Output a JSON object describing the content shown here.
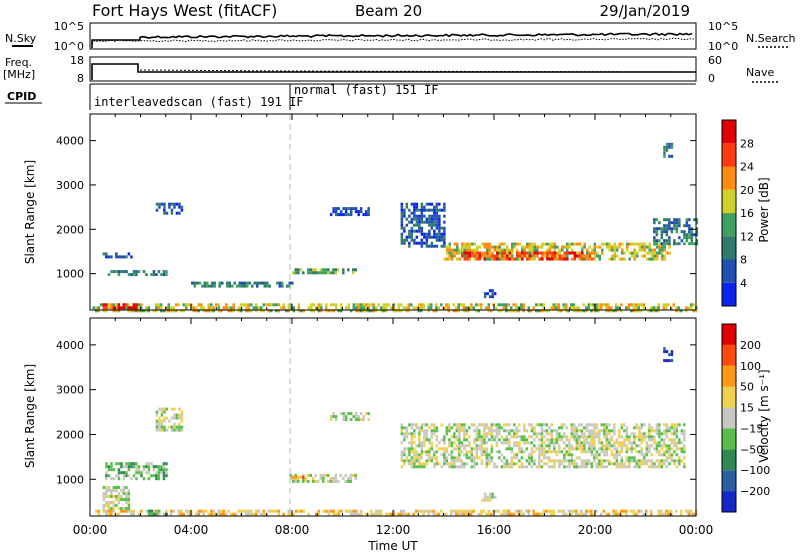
{
  "header": {
    "station": "Fort Hays West (fitACF)",
    "beam": "Beam 20",
    "date": "29/Jan/2019"
  },
  "strips": {
    "nsky": {
      "left_label": "N.Sky",
      "right_label": "N.Search",
      "left_ticks": [
        "10^5",
        "10^0"
      ],
      "right_ticks": [
        "10^5",
        "10^0"
      ]
    },
    "freq": {
      "left_label": "Freq.",
      "left_unit": "[MHz]",
      "right_label": "Nave",
      "left_ticks": [
        "18",
        "8"
      ],
      "right_ticks": [
        "60",
        "0"
      ]
    },
    "cpid": {
      "label": "CPID",
      "segments": [
        {
          "text": "interleavedscan (fast) 191 IF",
          "start_hour": 0,
          "end_hour": 8
        },
        {
          "text": "normal (fast) 151 IF",
          "start_hour": 8,
          "end_hour": 24
        }
      ]
    }
  },
  "time_axis": {
    "label": "Time UT",
    "ticks": [
      "00:00",
      "04:00",
      "08:00",
      "12:00",
      "16:00",
      "20:00",
      "00:00"
    ]
  },
  "chart_data": [
    {
      "type": "heatmap",
      "title": "",
      "xlabel": "Time UT",
      "ylabel": "Slant Range [km]",
      "xlim_hours": [
        0,
        24
      ],
      "ylim_km": [
        180,
        4600
      ],
      "yticks": [
        1000,
        2000,
        3000,
        4000
      ],
      "colorbar": {
        "label": "Power [dB]",
        "ticks": [
          "4",
          "8",
          "12",
          "16",
          "20",
          "24",
          "28"
        ],
        "colors": [
          "#0a24f0",
          "#1f4fb0",
          "#2f7a6a",
          "#3fa060",
          "#cfd02a",
          "#ff8c10",
          "#ff3a10",
          "#e00000"
        ]
      },
      "echo_regions": [
        {
          "t0": 0.1,
          "t1": 24,
          "r0": 190,
          "r1": 330,
          "level": 4
        },
        {
          "t0": 0.5,
          "t1": 1.8,
          "r0": 230,
          "r1": 330,
          "level": 7
        },
        {
          "t0": 0.6,
          "t1": 3.0,
          "r0": 950,
          "r1": 1080,
          "level": 2
        },
        {
          "t0": 0.5,
          "t1": 1.6,
          "r0": 1350,
          "r1": 1480,
          "level": 1
        },
        {
          "t0": 2.6,
          "t1": 3.6,
          "r0": 2350,
          "r1": 2600,
          "level": 1
        },
        {
          "t0": 4.0,
          "t1": 8.0,
          "r0": 700,
          "r1": 820,
          "level": 2
        },
        {
          "t0": 8.0,
          "t1": 10.5,
          "r0": 1000,
          "r1": 1120,
          "level": 3
        },
        {
          "t0": 9.5,
          "t1": 11.0,
          "r0": 2300,
          "r1": 2500,
          "level": 1
        },
        {
          "t0": 12.3,
          "t1": 14.0,
          "r0": 1600,
          "r1": 2600,
          "level": 1
        },
        {
          "t0": 14.0,
          "t1": 23.0,
          "r0": 1300,
          "r1": 1700,
          "level": 4
        },
        {
          "t0": 14.5,
          "t1": 20.0,
          "r0": 1350,
          "r1": 1500,
          "level": 6
        },
        {
          "t0": 22.3,
          "t1": 24.0,
          "r0": 1700,
          "r1": 2250,
          "level": 2
        },
        {
          "t0": 15.6,
          "t1": 16.0,
          "r0": 500,
          "r1": 650,
          "level": 1
        },
        {
          "t0": 22.7,
          "t1": 23.0,
          "r0": 3650,
          "r1": 3950,
          "level": 2
        }
      ]
    },
    {
      "type": "heatmap",
      "title": "",
      "xlabel": "Time UT",
      "ylabel": "Slant Range [km]",
      "xlim_hours": [
        0,
        24
      ],
      "ylim_km": [
        180,
        4600
      ],
      "yticks": [
        1000,
        2000,
        3000,
        4000
      ],
      "colorbar": {
        "label": "Velocity [m s⁻¹]",
        "ticks": [
          "200",
          "100",
          "50",
          "15",
          "−15",
          "−50",
          "−100",
          "−200"
        ],
        "colors": [
          "#1428c8",
          "#2860a0",
          "#2e8a52",
          "#58c04a",
          "#c8c8c0",
          "#f0d050",
          "#ff9a10",
          "#ff4a10",
          "#e00000"
        ]
      },
      "echo_regions": [
        {
          "t0": 0.1,
          "t1": 24,
          "r0": 190,
          "r1": 320,
          "level": 5
        },
        {
          "t0": 2.0,
          "t1": 3.0,
          "r0": 190,
          "r1": 320,
          "level": 3
        },
        {
          "t0": 0.5,
          "t1": 1.5,
          "r0": 350,
          "r1": 850,
          "level": 4
        },
        {
          "t0": 0.6,
          "t1": 3.0,
          "r0": 1000,
          "r1": 1380,
          "level": 3
        },
        {
          "t0": 2.6,
          "t1": 3.6,
          "r0": 2100,
          "r1": 2600,
          "level": 4
        },
        {
          "t0": 7.9,
          "t1": 10.5,
          "r0": 950,
          "r1": 1120,
          "level": 4
        },
        {
          "t0": 7.9,
          "t1": 8.6,
          "r0": 980,
          "r1": 1080,
          "level": 6
        },
        {
          "t0": 9.5,
          "t1": 11.0,
          "r0": 2300,
          "r1": 2500,
          "level": 4
        },
        {
          "t0": 12.3,
          "t1": 23.5,
          "r0": 1250,
          "r1": 2250,
          "level": 4
        },
        {
          "t0": 15.5,
          "t1": 16.0,
          "r0": 500,
          "r1": 700,
          "level": 4
        },
        {
          "t0": 22.7,
          "t1": 23.0,
          "r0": 3650,
          "r1": 3950,
          "level": 0
        }
      ]
    }
  ]
}
